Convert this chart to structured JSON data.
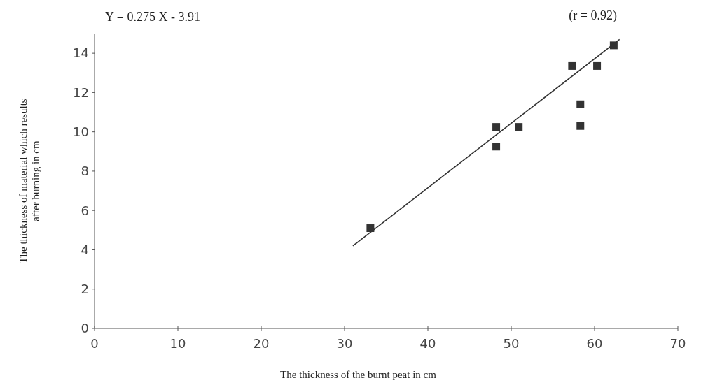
{
  "chart_data": {
    "type": "scatter",
    "xlabel": "The thickness of the burnt peat in cm",
    "ylabel": "The thickness of material which results after burning in cm",
    "annotations": [
      "Y = 0.275 X - 3.91",
      "(r = 0.92)"
    ],
    "xlim": [
      0,
      70
    ],
    "xticks": [
      0,
      10,
      20,
      30,
      40,
      50,
      60,
      70
    ],
    "ylim": [
      0,
      15
    ],
    "yticks": [
      0,
      2,
      4,
      6,
      8,
      10,
      12,
      14
    ],
    "grid": false,
    "marker": "square",
    "series": [
      {
        "color": "#333333",
        "x": [
          33.1,
          48.2,
          48.2,
          50.9,
          57.3,
          60.3,
          58.3,
          58.3,
          62.3
        ],
        "values": [
          5.1,
          10.25,
          9.25,
          10.25,
          13.35,
          13.35,
          11.4,
          10.3,
          14.4
        ]
      },
      {
        "type": "line",
        "color": "#333333",
        "x": [
          31,
          63
        ],
        "values": [
          4.2,
          14.7
        ],
        "marker": "none",
        "line_style": "solid"
      }
    ]
  }
}
